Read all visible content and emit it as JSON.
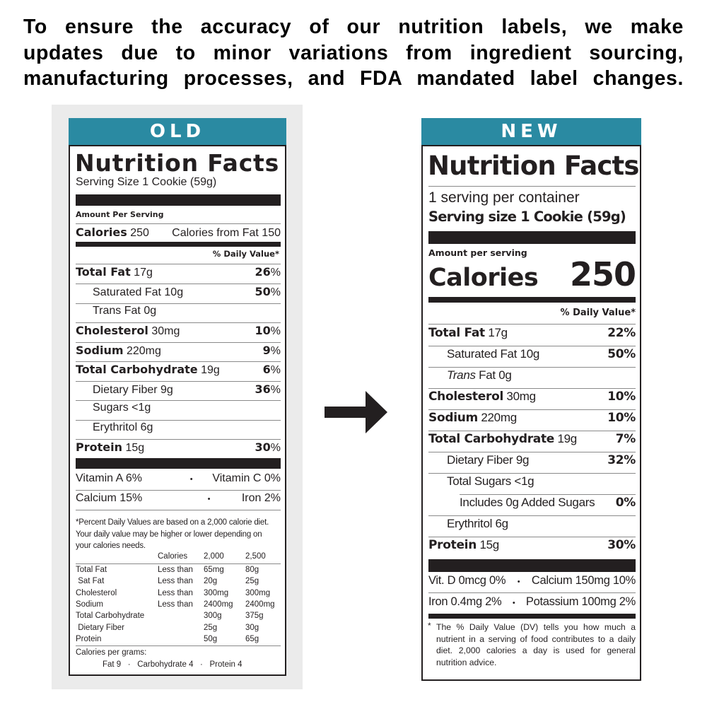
{
  "headline": {
    "lines": [
      "To ensure the accuracy of our nutrition labels, we make",
      "updates due to minor variations from ingredient sourcing,",
      "manufacturing processes, and FDA mandated label changes."
    ]
  },
  "colors": {
    "tag_bg": "#2a8aa2",
    "ink": "#231f20",
    "old_panel_bg": "#ebebeb"
  },
  "old_label": {
    "tag": "OLD",
    "title": "Nutrition Facts",
    "serving_size": "Serving Size 1 Cookie (59g)",
    "amount_per_serving": "Amount Per Serving",
    "calories_label": "Calories",
    "calories_value": "250",
    "calories_from_fat": "Calories from Fat 150",
    "daily_value_header": "% Daily Value*",
    "nutrients": [
      {
        "name": "Total Fat",
        "amount": "17g",
        "dv": "26",
        "bold": true,
        "indent": 0
      },
      {
        "name": "Saturated Fat",
        "amount": "10g",
        "dv": "50",
        "bold": false,
        "indent": 1
      },
      {
        "name": "Trans Fat",
        "amount": "0g",
        "dv": "",
        "bold": false,
        "indent": 1
      },
      {
        "name": "Cholesterol",
        "amount": "30mg",
        "dv": "10",
        "bold": true,
        "indent": 0
      },
      {
        "name": "Sodium",
        "amount": "220mg",
        "dv": "9",
        "bold": true,
        "indent": 0
      },
      {
        "name": "Total Carbohydrate",
        "amount": "19g",
        "dv": "6",
        "bold": true,
        "indent": 0
      },
      {
        "name": "Dietary Fiber",
        "amount": "9g",
        "dv": "36",
        "bold": false,
        "indent": 1
      },
      {
        "name": "Sugars",
        "amount": "<1g",
        "dv": "",
        "bold": false,
        "indent": 1
      },
      {
        "name": "Erythritol",
        "amount": "6g",
        "dv": "",
        "bold": false,
        "indent": 1
      },
      {
        "name": "Protein",
        "amount": "15g",
        "dv": "30",
        "bold": true,
        "indent": 0
      }
    ],
    "percent_sign": "%",
    "vitamins": [
      {
        "left": "Vitamin A 6%",
        "right": "Vitamin C 0%"
      },
      {
        "left": "Calcium 15%",
        "right": "Iron 2%"
      }
    ],
    "bullet": "•",
    "footnote": [
      "*Percent Daily Values are based on a 2,000 calorie diet.",
      "Your daily value may be higher or lower depending on",
      "your calories needs."
    ],
    "dv_table": {
      "header": [
        "",
        "Calories",
        "2,000",
        "2,500"
      ],
      "rows": [
        [
          "Total Fat",
          "Less than",
          "65mg",
          "80g"
        ],
        [
          " Sat Fat",
          "Less than",
          "20g",
          "25g"
        ],
        [
          "Cholesterol",
          "Less than",
          "300mg",
          "300mg"
        ],
        [
          "Sodium",
          "Less than",
          "2400mg",
          "2400mg"
        ],
        [
          "Total Carbohydrate",
          "",
          "300g",
          "375g"
        ],
        [
          " Dietary Fiber",
          "",
          "25g",
          "30g"
        ],
        [
          "Protein",
          "",
          "50g",
          "65g"
        ]
      ]
    },
    "calories_per_gram_label": "Calories per grams:",
    "calories_per_gram": "Fat 9   ·   Carbohydrate 4   ·   Protein 4"
  },
  "arrow": {
    "icon": "arrow-right-icon"
  },
  "new_label": {
    "tag": "NEW",
    "title": "Nutrition Facts",
    "servings_per_container": "1 serving per container",
    "serving_size": "Serving size 1 Cookie (59g)",
    "amount_per_serving": "Amount per serving",
    "calories_label": "Calories",
    "calories_value": "250",
    "daily_value_header": "% Daily Value*",
    "nutrients": [
      {
        "name": "Total Fat",
        "amount": "17g",
        "dv": "22%",
        "bold": true,
        "indent": 0
      },
      {
        "name": "Saturated Fat",
        "amount": "10g",
        "dv": "50%",
        "bold": false,
        "indent": 1
      },
      {
        "name": "Trans",
        "name_rest": "Fat",
        "amount": "0g",
        "dv": "",
        "bold": false,
        "indent": 1,
        "italic_prefix": true
      },
      {
        "name": "Cholesterol",
        "amount": "30mg",
        "dv": "10%",
        "bold": true,
        "indent": 0
      },
      {
        "name": "Sodium",
        "amount": "220mg",
        "dv": "10%",
        "bold": true,
        "indent": 0
      },
      {
        "name": "Total Carbohydrate",
        "amount": "19g",
        "dv": "7%",
        "bold": true,
        "indent": 0
      },
      {
        "name": "Dietary Fiber",
        "amount": "9g",
        "dv": "32%",
        "bold": false,
        "indent": 1
      },
      {
        "name": "Total Sugars",
        "amount": "<1g",
        "dv": "",
        "bold": false,
        "indent": 1
      },
      {
        "name": "Includes 0g Added Sugars",
        "amount": "",
        "dv": "0%",
        "bold": false,
        "indent": 2
      },
      {
        "name": "Erythritol",
        "amount": "6g",
        "dv": "",
        "bold": false,
        "indent": 1
      },
      {
        "name": "Protein",
        "amount": "15g",
        "dv": "30%",
        "bold": true,
        "indent": 0
      }
    ],
    "vitamins": [
      {
        "left": "Vit. D 0mcg 0%",
        "right": "Calcium 150mg 10%"
      },
      {
        "left": "Iron 0.4mg 2%",
        "right": "Potassium 100mg 2%"
      }
    ],
    "bullet": "•",
    "footnote_star": "*",
    "footnote": [
      "The % Daily Value (DV) tells you how much a",
      "nutrient in a serving of food contributes to a daily",
      "diet. 2,000 calories a day is used for general",
      "nutrition advice."
    ]
  }
}
